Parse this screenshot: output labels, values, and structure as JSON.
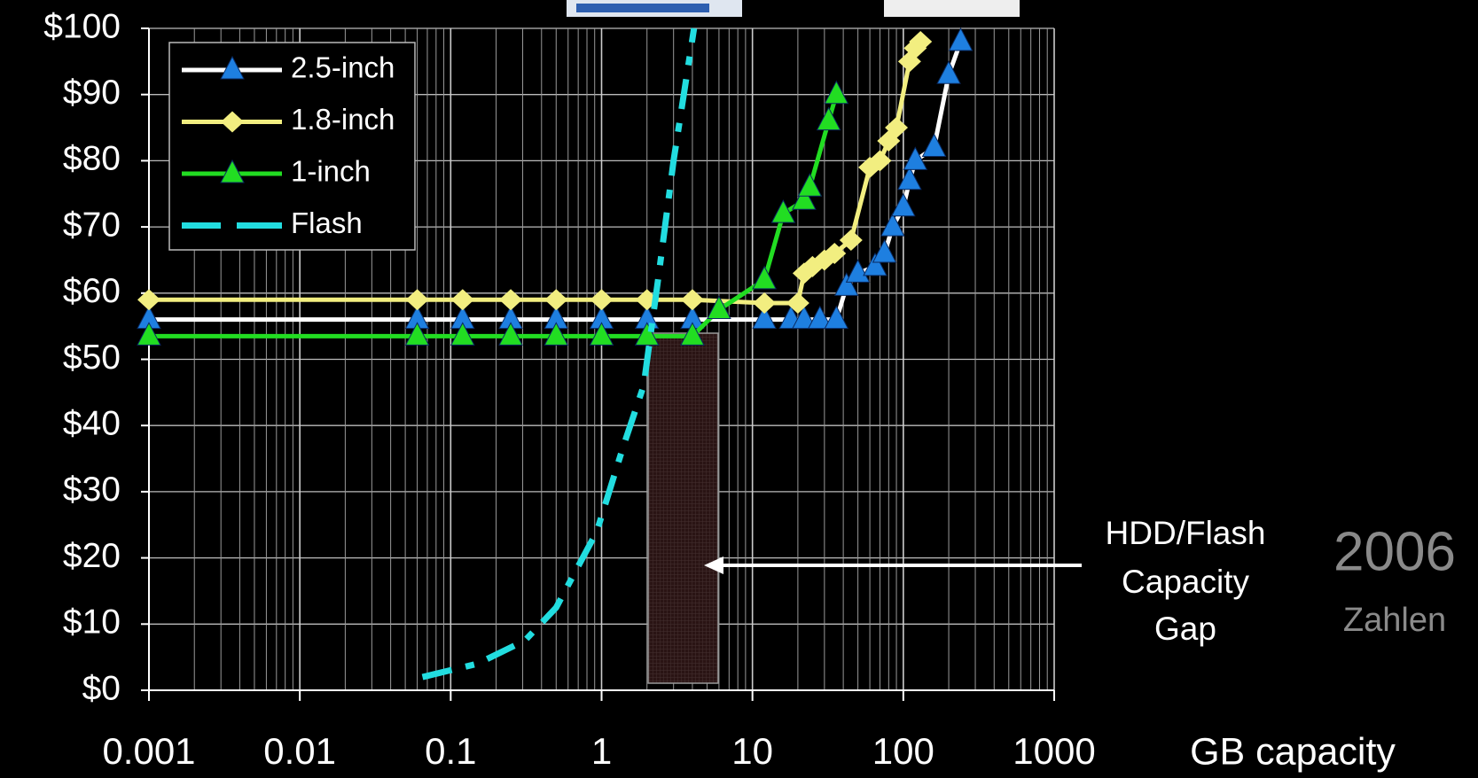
{
  "chart_data": {
    "type": "line",
    "x_label": "GB capacity",
    "log_x": true,
    "grid": true,
    "legend": "top-left",
    "xlim": [
      0.001,
      1000
    ],
    "xticks": [
      0.001,
      0.01,
      0.1,
      1,
      10,
      100,
      1000
    ],
    "ylim": [
      0,
      100
    ],
    "yticks": [
      {
        "value": 0,
        "label": "$0"
      },
      {
        "value": 10,
        "label": "$10"
      },
      {
        "value": 20,
        "label": "$20"
      },
      {
        "value": 30,
        "label": "$30"
      },
      {
        "value": 40,
        "label": "$40"
      },
      {
        "value": 50,
        "label": "$50"
      },
      {
        "value": 60,
        "label": "$60"
      },
      {
        "value": 70,
        "label": "$70"
      },
      {
        "value": 80,
        "label": "$80"
      },
      {
        "value": 90,
        "label": "$90"
      },
      {
        "value": 100,
        "label": "$100"
      }
    ],
    "series": [
      {
        "name": "2.5-inch",
        "color": "#ffffff",
        "marker": "triangle",
        "marker_color": "#1e7fe0",
        "x": [
          0.001,
          0.06,
          0.12,
          0.25,
          0.5,
          1,
          2,
          4,
          12,
          18,
          22,
          28,
          36,
          42,
          50,
          65,
          75,
          85,
          100,
          110,
          120,
          160,
          200,
          240
        ],
        "values": [
          56,
          56,
          56,
          56,
          56,
          56,
          56,
          56,
          56,
          56,
          56,
          56,
          56,
          61,
          63,
          64,
          66,
          70,
          73,
          77,
          80,
          82,
          93,
          98
        ]
      },
      {
        "name": "1.8-inch",
        "color": "#f2ee80",
        "marker": "diamond",
        "marker_color": "#f2ee80",
        "x": [
          0.001,
          0.06,
          0.12,
          0.25,
          0.5,
          1,
          2,
          4,
          12,
          20,
          22,
          25,
          30,
          35,
          45,
          60,
          70,
          80,
          90,
          110,
          120,
          130
        ],
        "values": [
          59,
          59,
          59,
          59,
          59,
          59,
          59,
          59,
          58.5,
          58.5,
          63,
          64,
          65,
          66,
          68,
          79,
          80,
          83,
          85,
          95,
          97,
          98
        ]
      },
      {
        "name": "1-inch",
        "color": "#22dd22",
        "marker": "triangle",
        "marker_color": "#22dd22",
        "x": [
          0.001,
          0.06,
          0.12,
          0.25,
          0.5,
          1,
          2,
          4,
          6,
          12,
          16,
          22,
          24,
          32,
          36
        ],
        "values": [
          53.5,
          53.5,
          53.5,
          53.5,
          53.5,
          53.5,
          53.5,
          53.5,
          57.5,
          62,
          72,
          74,
          76,
          86,
          90
        ]
      },
      {
        "name": "Flash",
        "color": "#22dde0",
        "marker": "none",
        "dashed": true,
        "x": [
          0.065,
          0.15,
          0.31,
          0.5,
          0.93,
          1.4,
          1.9,
          2.4,
          3,
          4.1
        ],
        "values": [
          2,
          4,
          7.5,
          12.5,
          24,
          37,
          46,
          63,
          80,
          100
        ]
      }
    ],
    "annotation": [
      "HDD/Flash",
      "Capacity",
      "Gap"
    ],
    "note_year": "2006",
    "note_sub": "Zahlen"
  }
}
